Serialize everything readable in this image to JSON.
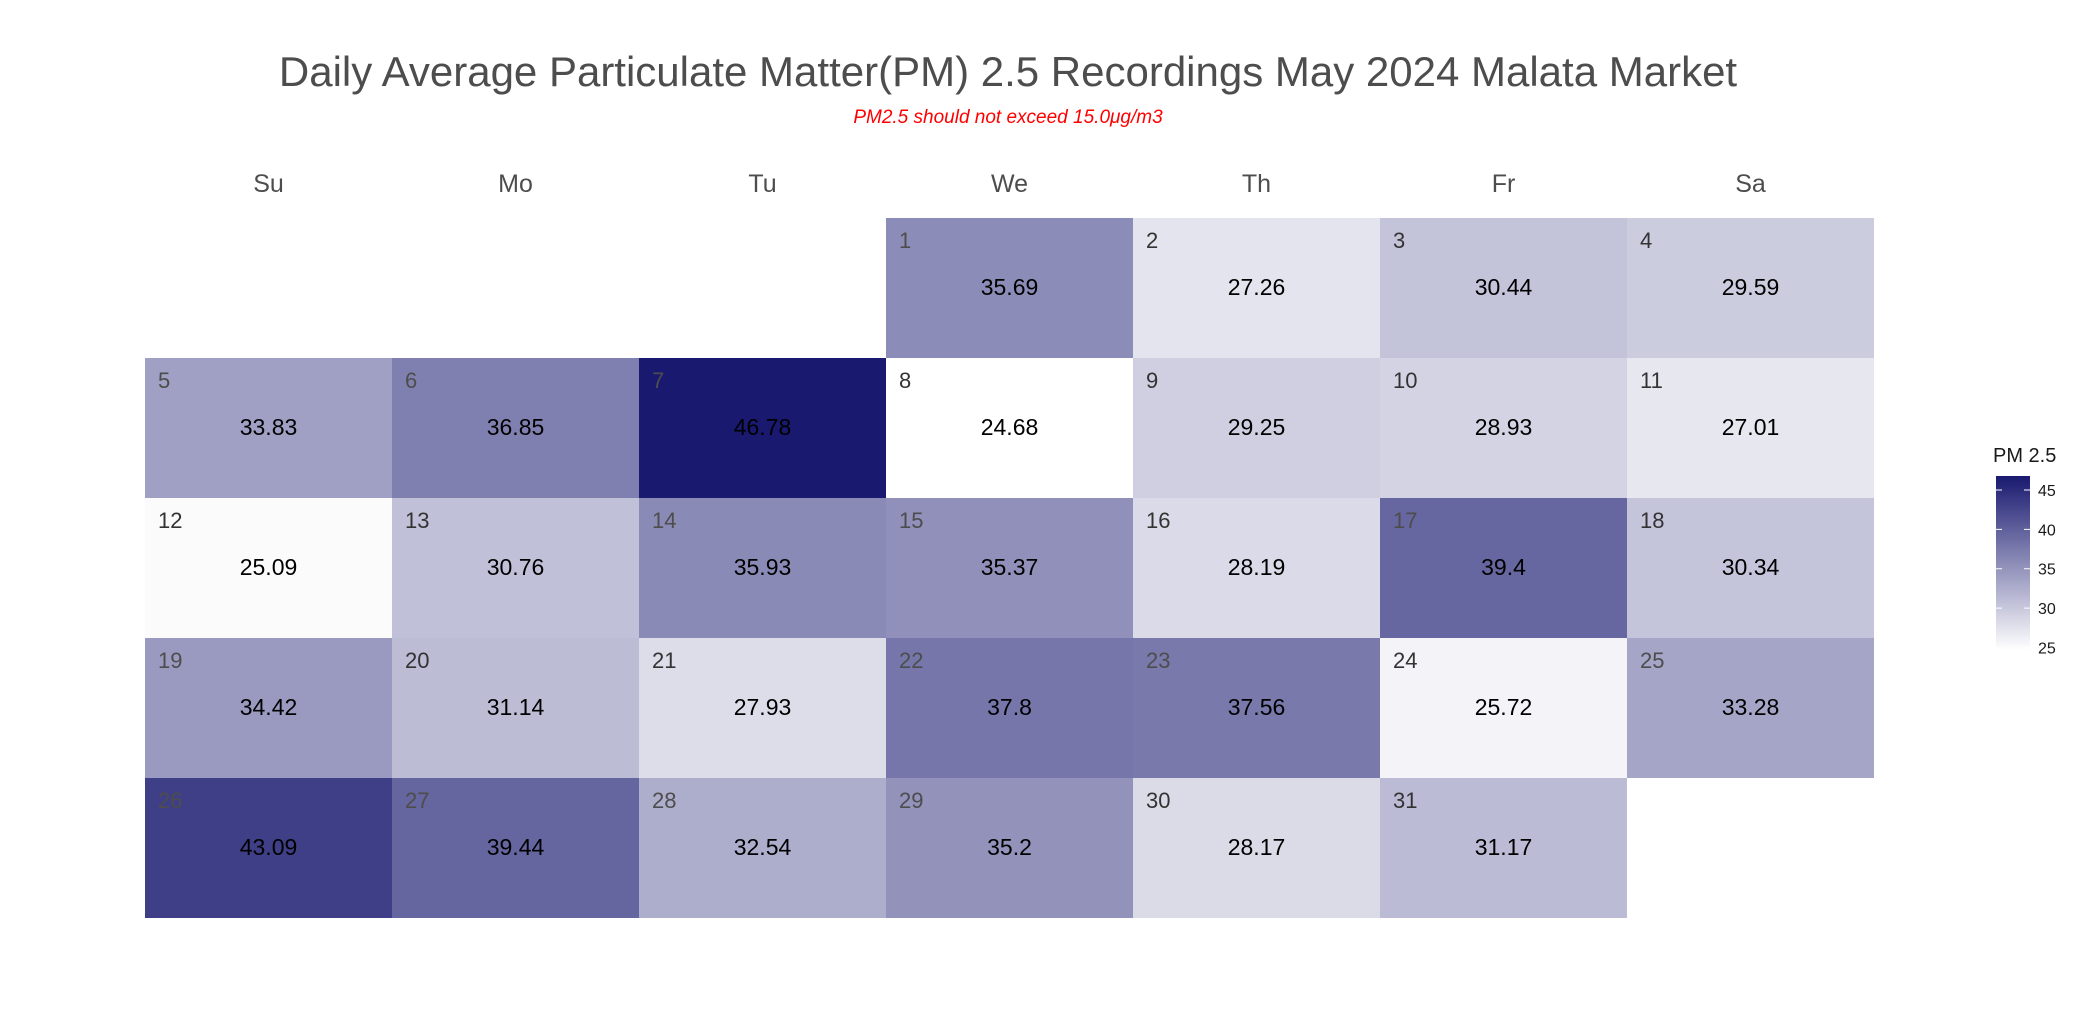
{
  "colors": {
    "low": "#ffffff",
    "high": "#191970",
    "subtitle": "#ff0000"
  },
  "chart_data": {
    "type": "heatmap",
    "title": "Daily Average Particulate Matter(PM) 2.5 Recordings May 2024 Malata Market",
    "subtitle": "PM2.5 should not exceed 15.0μg/m3",
    "weekdays": [
      "Su",
      "Mo",
      "Tu",
      "We",
      "Th",
      "Fr",
      "Sa"
    ],
    "month": "May 2024",
    "first_weekday_index": 3,
    "days": [
      1,
      2,
      3,
      4,
      5,
      6,
      7,
      8,
      9,
      10,
      11,
      12,
      13,
      14,
      15,
      16,
      17,
      18,
      19,
      20,
      21,
      22,
      23,
      24,
      25,
      26,
      27,
      28,
      29,
      30,
      31
    ],
    "values": [
      35.69,
      27.26,
      30.44,
      29.59,
      33.83,
      36.85,
      46.78,
      24.68,
      29.25,
      28.93,
      27.01,
      25.09,
      30.76,
      35.93,
      35.37,
      28.19,
      39.4,
      30.34,
      34.42,
      31.14,
      27.93,
      37.8,
      37.56,
      25.72,
      33.28,
      43.09,
      39.44,
      32.54,
      35.2,
      28.17,
      31.17
    ],
    "color_range": [
      24.68,
      46.78
    ],
    "legend": {
      "title": "PM 2.5",
      "ticks": [
        "45",
        "40",
        "35",
        "30",
        "25"
      ],
      "placement": "right"
    }
  }
}
